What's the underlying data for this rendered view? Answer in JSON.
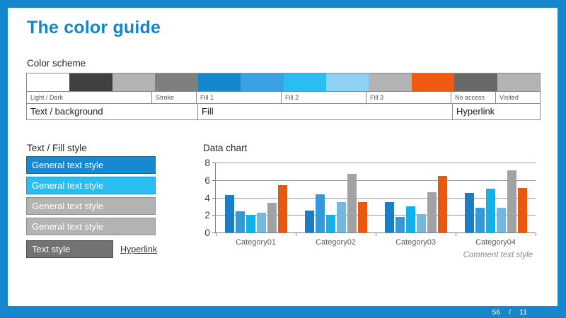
{
  "title": "The color guide",
  "accent_color": "#1787cd",
  "color_scheme": {
    "heading": "Color scheme",
    "swatches": [
      {
        "name": "light-background",
        "color": "#ffffff"
      },
      {
        "name": "dark-text",
        "color": "#404040"
      },
      {
        "name": "light-gray",
        "color": "#b3b3b3"
      },
      {
        "name": "stroke-gray",
        "color": "#7f7f7f"
      },
      {
        "name": "fill1-primary-blue",
        "color": "#1787cd"
      },
      {
        "name": "fill1-secondary-blue",
        "color": "#3ba1e3"
      },
      {
        "name": "fill2-primary-sky",
        "color": "#29bdf2"
      },
      {
        "name": "fill2-secondary-sky",
        "color": "#8fd0f4"
      },
      {
        "name": "fill3-gray",
        "color": "#b3b3b3"
      },
      {
        "name": "fill3-orange",
        "color": "#f15a13"
      },
      {
        "name": "no-access-gray",
        "color": "#696969"
      },
      {
        "name": "visited-gray",
        "color": "#b3b3b3"
      }
    ],
    "group_labels": [
      {
        "label": "Light / Dark",
        "span": 3
      },
      {
        "label": "Stroke",
        "span": 1
      },
      {
        "label": "Fill 1",
        "span": 2
      },
      {
        "label": "Fill 2",
        "span": 2
      },
      {
        "label": "Fill 3",
        "span": 2
      },
      {
        "label": "No access",
        "span": 1
      },
      {
        "label": "Visited",
        "span": 1
      }
    ],
    "usage_labels": [
      {
        "label": "Text / background",
        "span": 4
      },
      {
        "label": "Fill",
        "span": 6
      },
      {
        "label": "Hyperlink",
        "span": 2
      }
    ]
  },
  "text_fill_style": {
    "heading": "Text / Fill style",
    "buttons": [
      {
        "label": "General text style",
        "bg": "#1789d0",
        "border": "#0e6aa5",
        "narrow": false
      },
      {
        "label": "General text style",
        "bg": "#29bdf2",
        "border": "#0b9fd6",
        "narrow": false
      },
      {
        "label": "General text style",
        "bg": "#b3b3b3",
        "border": "#8f8f8f",
        "narrow": false
      },
      {
        "label": "General text style",
        "bg": "#b3b3b3",
        "border": "#8f8f8f",
        "narrow": false
      },
      {
        "label": "Text style",
        "bg": "#737373",
        "border": "#4f4f4f",
        "narrow": true
      }
    ],
    "hyperlink_label": "Hyperlink"
  },
  "chart_data": {
    "type": "bar",
    "title": "Data chart",
    "annotation": "Comment text style",
    "categories": [
      "Category01",
      "Category02",
      "Category03",
      "Category04"
    ],
    "series": [
      {
        "name": "dark-blue",
        "color": "#1b7ec4",
        "values": [
          4.3,
          2.5,
          3.5,
          4.5
        ]
      },
      {
        "name": "blue",
        "color": "#3399d8",
        "values": [
          2.4,
          4.4,
          1.8,
          2.8
        ]
      },
      {
        "name": "cyan",
        "color": "#11b1ec",
        "values": [
          2.0,
          2.0,
          3.0,
          5.0
        ]
      },
      {
        "name": "light-blue",
        "color": "#74b8e0",
        "values": [
          2.3,
          3.5,
          2.1,
          2.8
        ]
      },
      {
        "name": "gray",
        "color": "#a0a2a4",
        "values": [
          3.4,
          6.7,
          4.6,
          7.1
        ]
      },
      {
        "name": "orange",
        "color": "#e8580f",
        "values": [
          5.4,
          3.5,
          6.5,
          5.1
        ]
      }
    ],
    "xlabel": "",
    "ylabel": "",
    "ylim": [
      0,
      8
    ],
    "yticks": [
      0,
      2,
      4,
      6,
      8
    ],
    "grid": true,
    "legend_position": "none"
  },
  "footer": {
    "page": "56",
    "separator": "/",
    "total": "11"
  }
}
